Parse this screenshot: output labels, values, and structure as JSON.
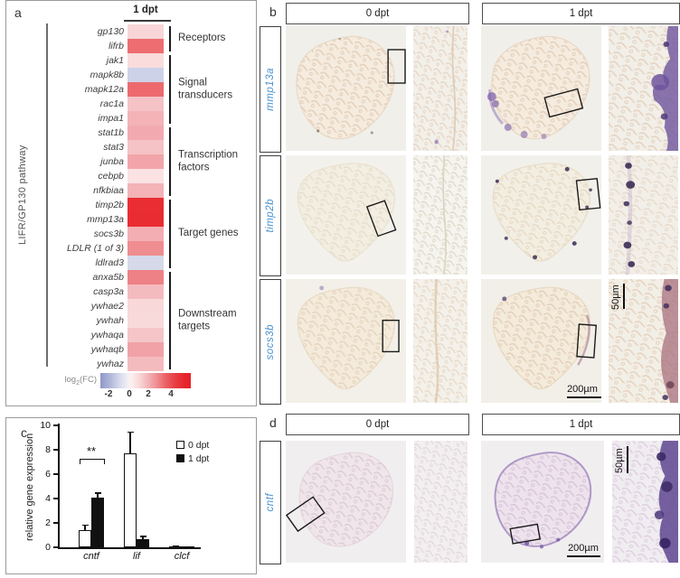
{
  "figure": {
    "a": "a",
    "b": "b",
    "c": "c",
    "d": "d"
  },
  "panel_a": {
    "column_header": "1 dpt",
    "pathway_label": "LIFR/GP130 pathway",
    "genes": [
      {
        "name": "gp130",
        "color": "#f8d6d7",
        "log2fc": 0.9
      },
      {
        "name": "lifrb",
        "color": "#ed6d70",
        "log2fc": 3.2
      },
      {
        "name": "jak1",
        "color": "#fadcdc",
        "log2fc": 0.6
      },
      {
        "name": "mapk8b",
        "color": "#cdd2e8",
        "log2fc": -1.1
      },
      {
        "name": "mapk12a",
        "color": "#ec6a6d",
        "log2fc": 3.3
      },
      {
        "name": "rac1a",
        "color": "#f5c2c5",
        "log2fc": 1.3
      },
      {
        "name": "impa1",
        "color": "#f3b3b7",
        "log2fc": 1.6
      },
      {
        "name": "stat1b",
        "color": "#f2aab0",
        "log2fc": 1.8
      },
      {
        "name": "stat3",
        "color": "#f5c2c5",
        "log2fc": 1.3
      },
      {
        "name": "junba",
        "color": "#f1a5aa",
        "log2fc": 1.9
      },
      {
        "name": "cebpb",
        "color": "#fbe2e3",
        "log2fc": 0.4
      },
      {
        "name": "nfkbiaa",
        "color": "#f3b3b7",
        "log2fc": 1.6
      },
      {
        "name": "timp2b",
        "color": "#ea2d33",
        "log2fc": 5.0
      },
      {
        "name": "mmp13a",
        "color": "#e92c32",
        "log2fc": 5.0
      },
      {
        "name": "socs3b",
        "color": "#f3aeb3",
        "log2fc": 1.7
      },
      {
        "name": "LDLR (1 of 3)",
        "color": "#ef8d90",
        "log2fc": 2.6
      },
      {
        "name": "ldlrad3",
        "color": "#d5d9ea",
        "log2fc": -0.9
      },
      {
        "name": "anxa5b",
        "color": "#ee8186",
        "log2fc": 2.8
      },
      {
        "name": "casp3a",
        "color": "#f4bbbe",
        "log2fc": 1.4
      },
      {
        "name": "ywhae2",
        "color": "#f9d8d9",
        "log2fc": 0.8
      },
      {
        "name": "ywhah",
        "color": "#f9dadb",
        "log2fc": 0.75
      },
      {
        "name": "ywhaqa",
        "color": "#f5c5c7",
        "log2fc": 1.2
      },
      {
        "name": "ywhaqb",
        "color": "#f0a2a7",
        "log2fc": 1.9
      },
      {
        "name": "ywhaz",
        "color": "#f4bbbe",
        "log2fc": 1.4
      }
    ],
    "groups": [
      {
        "label": "Receptors",
        "start": 0,
        "count": 2
      },
      {
        "label": "Signal transducers",
        "start": 2,
        "count": 5
      },
      {
        "label": "Transcription factors",
        "start": 7,
        "count": 5
      },
      {
        "label": "Target genes",
        "start": 12,
        "count": 5
      },
      {
        "label": "Downstream targets",
        "start": 17,
        "count": 7
      }
    ],
    "legend": {
      "label_pre": "log",
      "label_sub": "2",
      "label_post": "(FC)",
      "ticks": [
        "-2",
        "0",
        "2",
        "4"
      ]
    }
  },
  "panel_b": {
    "headers": [
      "0 dpt",
      "1 dpt"
    ],
    "rows": [
      {
        "label": "mmp13a"
      },
      {
        "label": "timp2b"
      },
      {
        "label": "socs3b"
      }
    ],
    "scalebar_50": "50µm",
    "scalebar_200": "200µm"
  },
  "panel_c": {
    "ylabel": "relative gene expression",
    "yticks": [
      "0",
      "2",
      "4",
      "6",
      "8",
      "10"
    ],
    "legend": [
      {
        "label": "0 dpt"
      },
      {
        "label": "1 dpt"
      }
    ],
    "significance": "**"
  },
  "panel_d": {
    "headers": [
      "0 dpt",
      "1 dpt"
    ],
    "row_label": "cntf",
    "scalebar_50": "50µm",
    "scalebar_200": "200µm"
  },
  "chart_data": [
    {
      "type": "heatmap",
      "title": "LIFR/GP130 pathway expression at 1 dpt",
      "columns": [
        "1 dpt"
      ],
      "rows": [
        "gp130",
        "lifrb",
        "jak1",
        "mapk8b",
        "mapk12a",
        "rac1a",
        "impa1",
        "stat1b",
        "stat3",
        "junba",
        "cebpb",
        "nfkbiaa",
        "timp2b",
        "mmp13a",
        "socs3b",
        "LDLR (1 of 3)",
        "ldlrad3",
        "anxa5b",
        "casp3a",
        "ywhae2",
        "ywhah",
        "ywhaqa",
        "ywhaqb",
        "ywhaz"
      ],
      "values": [
        0.9,
        3.2,
        0.6,
        -1.1,
        3.3,
        1.3,
        1.6,
        1.8,
        1.3,
        1.9,
        0.4,
        1.6,
        5.0,
        5.0,
        1.7,
        2.6,
        -0.9,
        2.8,
        1.4,
        0.8,
        0.75,
        1.2,
        1.9,
        1.4
      ],
      "groups": [
        {
          "label": "Receptors",
          "rows": [
            "gp130",
            "lifrb"
          ]
        },
        {
          "label": "Signal transducers",
          "rows": [
            "jak1",
            "mapk8b",
            "mapk12a",
            "rac1a",
            "impa1"
          ]
        },
        {
          "label": "Transcription factors",
          "rows": [
            "stat1b",
            "stat3",
            "junba",
            "cebpb",
            "nfkbiaa"
          ]
        },
        {
          "label": "Target genes",
          "rows": [
            "timp2b",
            "mmp13a",
            "socs3b",
            "LDLR (1 of 3)",
            "ldlrad3"
          ]
        },
        {
          "label": "Downstream targets",
          "rows": [
            "anxa5b",
            "casp3a",
            "ywhae2",
            "ywhah",
            "ywhaqa",
            "ywhaqb",
            "ywhaz"
          ]
        }
      ],
      "colorbar": {
        "label": "log2(FC)",
        "ticks": [
          -2,
          0,
          2,
          4
        ],
        "low_color": "#8f97c9",
        "mid_color": "#ffffff",
        "high_color": "#e62228"
      }
    },
    {
      "type": "bar",
      "categories": [
        "cntf",
        "lif",
        "clcf"
      ],
      "series": [
        {
          "name": "0 dpt",
          "fill": "white",
          "values": [
            1.4,
            7.7,
            0.1
          ],
          "errors": [
            0.45,
            1.8,
            0.05
          ]
        },
        {
          "name": "1 dpt",
          "fill": "black",
          "values": [
            4.1,
            0.65,
            0.05
          ],
          "errors": [
            0.4,
            0.3,
            0.03
          ]
        }
      ],
      "ylabel": "relative gene expression",
      "ylim": [
        0,
        10
      ],
      "legend_position": "top-right",
      "significance": {
        "category": "cntf",
        "label": "**"
      }
    }
  ]
}
